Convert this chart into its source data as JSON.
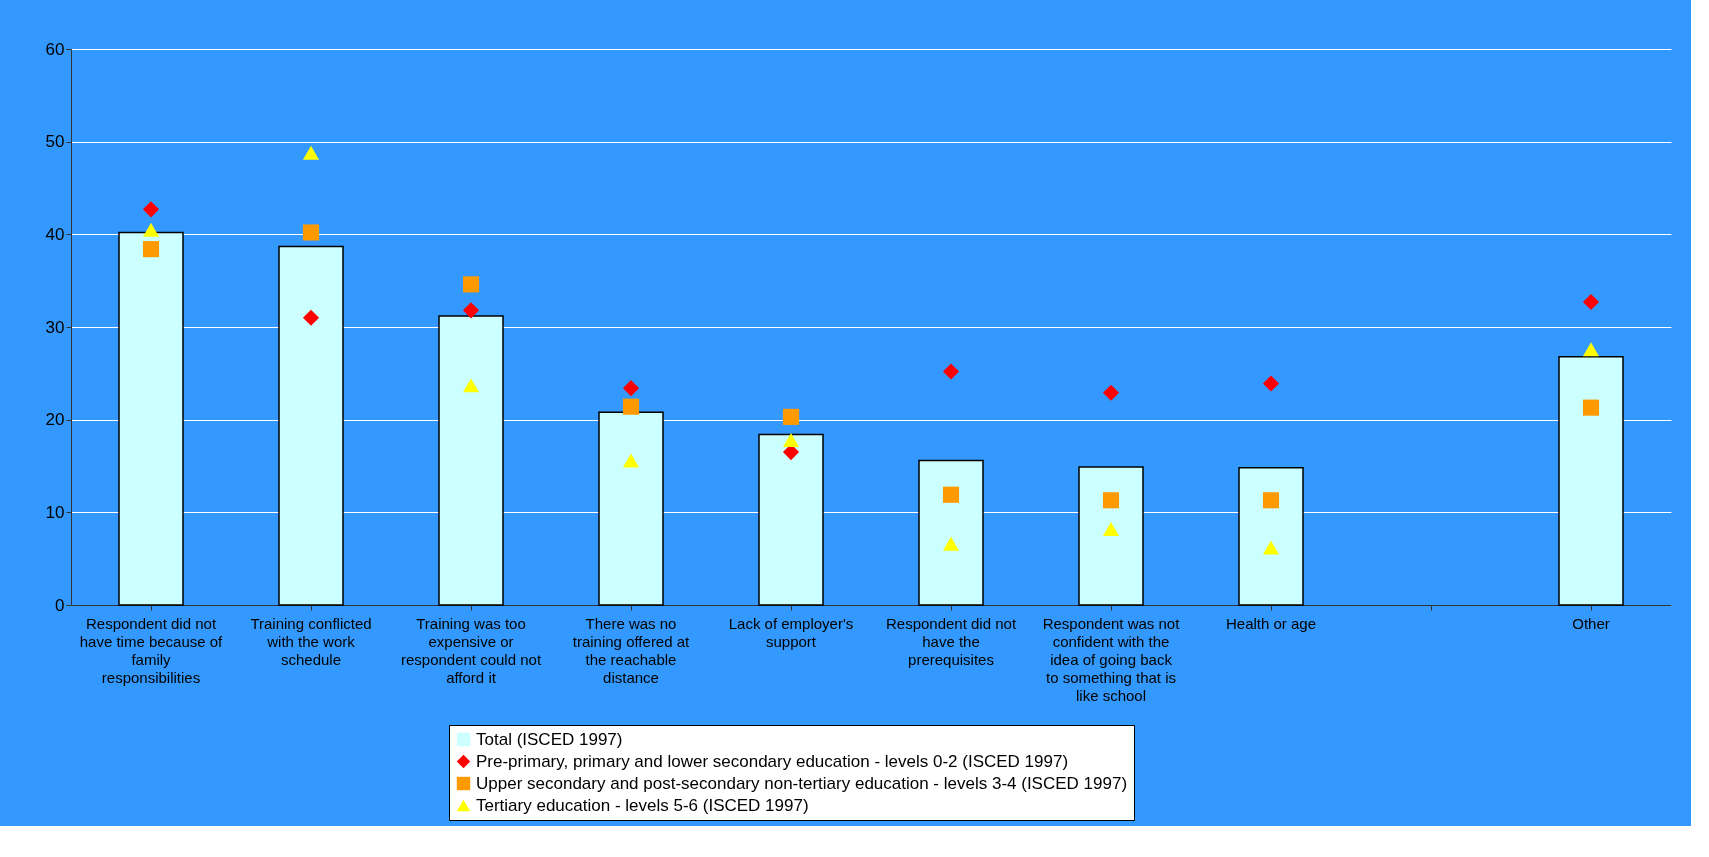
{
  "chart_data": {
    "type": "bar",
    "categories": [
      "Respondent  did not have time because of family responsibilities",
      "Training conflicted with the work schedule",
      "Training was too expensive or respondent could not afford it",
      "There was no training offered at the reachable distance",
      "Lack of employer's support",
      "Respondent did not have the prerequisites",
      "Respondent was not confident with the idea of going back to something that is like school",
      "Health or age",
      null,
      "Other"
    ],
    "ylim": [
      0,
      60
    ],
    "yticks": [
      0,
      10,
      20,
      30,
      40,
      50,
      60
    ],
    "grid": "y",
    "legend": "bottom",
    "series": [
      {
        "name": "Total (ISCED 1997)",
        "color": "#ccffff",
        "values": [
          40.2,
          38.7,
          31.2,
          20.8,
          18.4,
          15.6,
          14.9,
          14.8,
          null,
          26.8
        ]
      },
      {
        "name": "Pre-primary, primary and lower secondary education - levels 0-2 (ISCED 1997)",
        "type": "scatter",
        "marker": "diamond",
        "color": "#ff0000",
        "values": [
          42.7,
          31.0,
          31.8,
          23.4,
          16.5,
          25.2,
          22.9,
          23.9,
          null,
          32.7
        ]
      },
      {
        "name": "Upper secondary and post-secondary non-tertiary education - levels 3-4 (ISCED 1997)",
        "type": "scatter",
        "marker": "square",
        "color": "#ff9900",
        "values": [
          38.4,
          40.2,
          34.6,
          21.4,
          20.3,
          11.9,
          11.3,
          11.3,
          null,
          21.3
        ]
      },
      {
        "name": "Tertiary education - levels 5-6 (ISCED 1997)",
        "type": "scatter",
        "marker": "triangle",
        "color": "#ffff00",
        "values": [
          40.5,
          48.8,
          23.7,
          15.6,
          17.8,
          6.6,
          8.2,
          6.2,
          null,
          27.6
        ]
      }
    ]
  }
}
